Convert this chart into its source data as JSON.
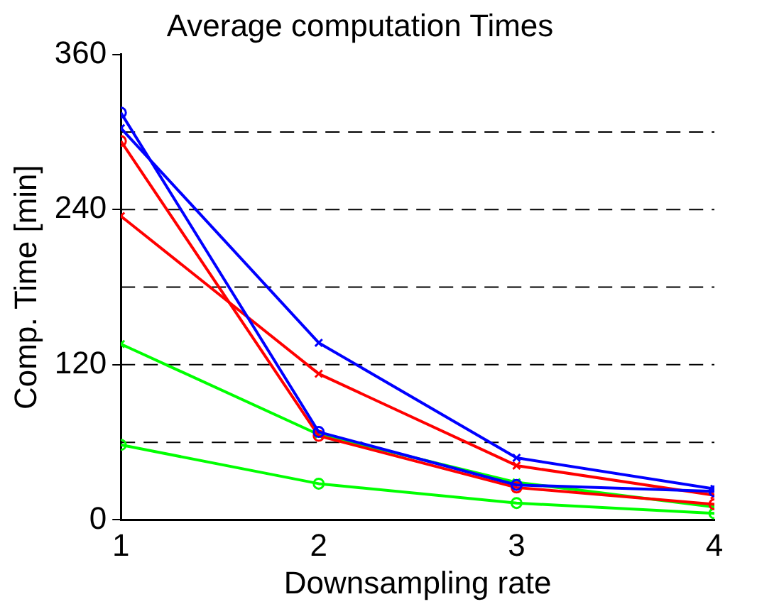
{
  "chart_data": {
    "type": "line",
    "title": "Average computation Times",
    "xlabel": "Downsampling rate",
    "ylabel": "Comp. Time [min]",
    "x": [
      1,
      2,
      3,
      4
    ],
    "xlim": [
      1,
      4
    ],
    "xticks": [
      1,
      2,
      3,
      4
    ],
    "ylim": [
      0,
      360
    ],
    "yticks": [
      0,
      120,
      240,
      360
    ],
    "grid": false,
    "legend": false,
    "series": [
      {
        "color": "#0000ff",
        "marker": "circle",
        "values": [
          315,
          68,
          27,
          22
        ]
      },
      {
        "color": "#0000ff",
        "marker": "cross",
        "values": [
          303,
          137,
          48,
          24
        ]
      },
      {
        "color": "#ff0000",
        "marker": "circle",
        "values": [
          293,
          65,
          25,
          12
        ]
      },
      {
        "color": "#ff0000",
        "marker": "cross",
        "values": [
          235,
          113,
          42,
          19
        ]
      },
      {
        "color": "#00ff00",
        "marker": "cross",
        "values": [
          136,
          66,
          29,
          10
        ]
      },
      {
        "color": "#00ff00",
        "marker": "circle",
        "values": [
          58,
          28,
          13,
          5
        ]
      }
    ],
    "ref_lines": [
      {
        "axis": "y",
        "value": 60,
        "color": "#000000",
        "line_style": "dashed"
      },
      {
        "axis": "y",
        "value": 120,
        "color": "#000000",
        "line_style": "dashed"
      },
      {
        "axis": "y",
        "value": 180,
        "color": "#000000",
        "line_style": "dashed"
      },
      {
        "axis": "y",
        "value": 240,
        "color": "#000000",
        "line_style": "dashed"
      },
      {
        "axis": "y",
        "value": 300,
        "color": "#000000",
        "line_style": "dashed"
      }
    ]
  }
}
